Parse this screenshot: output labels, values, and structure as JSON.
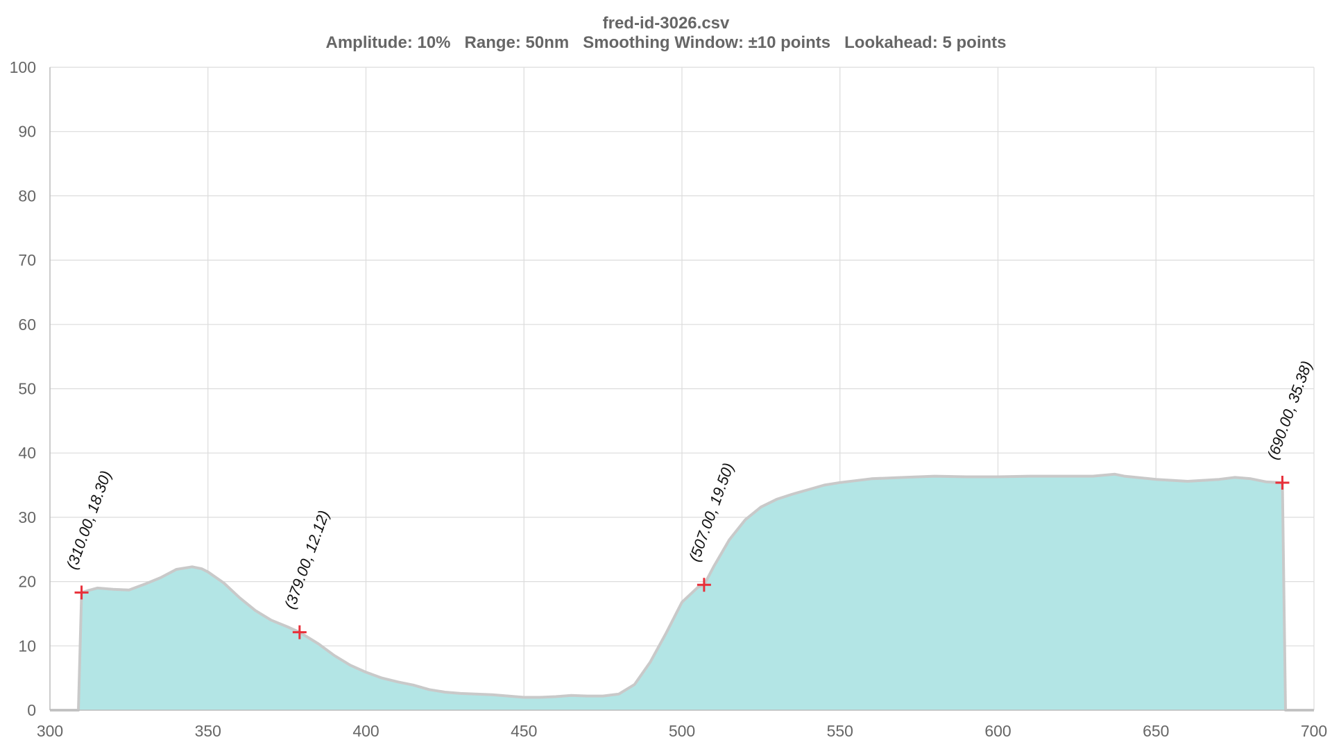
{
  "chart_data": {
    "type": "area",
    "title": "fred-id-3026.csv",
    "subtitle": "Amplitude: 10%   Range: 50nm   Smoothing Window: ±10 points   Lookahead: 5 points",
    "xlabel": "",
    "ylabel": "",
    "xlim": [
      300,
      700
    ],
    "ylim": [
      0,
      100
    ],
    "x_ticks": [
      "300",
      "350",
      "400",
      "450",
      "500",
      "550",
      "600",
      "650",
      "700"
    ],
    "y_ticks": [
      "0",
      "10",
      "20",
      "30",
      "40",
      "50",
      "60",
      "70",
      "80",
      "90",
      "100"
    ],
    "grid": true,
    "colors": {
      "fill": "#b3e5e5",
      "line": "#c9c9c9",
      "marker": "#e8303a",
      "grid": "#dcdcdc",
      "text": "#666666"
    },
    "series": [
      {
        "x": [
          300,
          309,
          310,
          312,
          315,
          320,
          325,
          330,
          335,
          340,
          345,
          348,
          350,
          355,
          360,
          365,
          370,
          375,
          379,
          385,
          390,
          395,
          400,
          405,
          410,
          415,
          420,
          425,
          430,
          440,
          450,
          455,
          460,
          465,
          470,
          475,
          480,
          485,
          490,
          495,
          500,
          505,
          507,
          510,
          515,
          520,
          525,
          530,
          535,
          540,
          545,
          550,
          560,
          570,
          580,
          590,
          600,
          610,
          620,
          630,
          637,
          640,
          650,
          660,
          670,
          675,
          680,
          685,
          690,
          691,
          700
        ],
        "y": [
          0,
          0,
          18.3,
          18.6,
          19,
          18.8,
          18.7,
          19.6,
          20.6,
          21.9,
          22.3,
          22,
          21.5,
          19.8,
          17.5,
          15.5,
          14,
          13,
          12.12,
          10.3,
          8.5,
          7,
          5.9,
          5,
          4.4,
          3.9,
          3.2,
          2.8,
          2.6,
          2.4,
          2,
          2,
          2.1,
          2.3,
          2.2,
          2.2,
          2.5,
          4,
          7.5,
          12,
          16.8,
          19.1,
          19.5,
          22.3,
          26.5,
          29.6,
          31.6,
          32.8,
          33.6,
          34.3,
          35,
          35.4,
          36,
          36.2,
          36.4,
          36.3,
          36.3,
          36.4,
          36.4,
          36.4,
          36.7,
          36.4,
          35.9,
          35.6,
          35.9,
          36.2,
          36,
          35.5,
          35.38,
          0,
          0
        ]
      }
    ],
    "peaks": [
      {
        "x": 310,
        "y": 18.3,
        "label": "(310.00,  18.30)"
      },
      {
        "x": 379,
        "y": 12.12,
        "label": "(379.00,  12.12)"
      },
      {
        "x": 507,
        "y": 19.5,
        "label": "(507.00,  19.50)"
      },
      {
        "x": 690,
        "y": 35.38,
        "label": "(690.00,  35.38)"
      }
    ]
  }
}
